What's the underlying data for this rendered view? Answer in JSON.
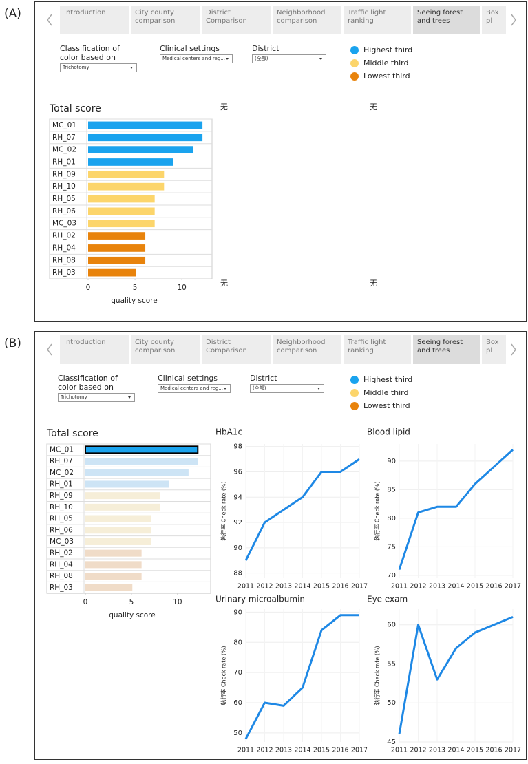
{
  "panels": [
    {
      "label": "(A)",
      "tabs": [
        "Introduction",
        "City county comparison",
        "District Comparison",
        "Neighborhood comparison",
        "Traffic light ranking",
        "Seeing forest and trees",
        "Box pl"
      ],
      "active_tab": 5,
      "filters": [
        {
          "label": "Classification of color based on",
          "value": "Trichotomy"
        },
        {
          "label": "Clinical settings",
          "value": "Medical centers and reg..."
        },
        {
          "label": "District",
          "value": "(全部)"
        }
      ],
      "legend": [
        {
          "name": "Highest third",
          "color": "#1aa3ee"
        },
        {
          "name": "Middle third",
          "color": "#fcd56b"
        },
        {
          "name": "Lowest third",
          "color": "#e8830c"
        }
      ],
      "placeholders": [
        "无",
        "无",
        "无",
        "无"
      ]
    },
    {
      "label": "(B)",
      "tabs": [
        "Introduction",
        "City county comparison",
        "District Comparison",
        "Neighborhood comparison",
        "Traffic light ranking",
        "Seeing forest and trees",
        "Box pl"
      ],
      "active_tab": 5,
      "filters": [
        {
          "label": "Classification of color based on",
          "value": "Trichotomy"
        },
        {
          "label": "Clinical settings",
          "value": "Medical centers and reg..."
        },
        {
          "label": "District",
          "value": "(全部)"
        }
      ],
      "legend": [
        {
          "name": "Highest third",
          "color": "#1aa3ee"
        },
        {
          "name": "Middle third",
          "color": "#fcd56b"
        },
        {
          "name": "Lowest third",
          "color": "#e8830c"
        }
      ]
    }
  ],
  "chart_data": [
    {
      "type": "bar",
      "title": "Total score",
      "categories": [
        "MC_01",
        "RH_07",
        "MC_02",
        "RH_01",
        "RH_09",
        "RH_10",
        "RH_05",
        "RH_06",
        "MC_03",
        "RH_02",
        "RH_04",
        "RH_08",
        "RH_03"
      ],
      "values": [
        12.2,
        12.2,
        11.2,
        9.1,
        8.1,
        8.1,
        7.1,
        7.1,
        7.1,
        6.1,
        6.1,
        6.1,
        5.1
      ],
      "colors": [
        "#1aa3ee",
        "#1aa3ee",
        "#1aa3ee",
        "#1aa3ee",
        "#fcd56b",
        "#fcd56b",
        "#fcd56b",
        "#fcd56b",
        "#fcd56b",
        "#e8830c",
        "#e8830c",
        "#e8830c",
        "#e8830c"
      ],
      "xlabel": "quality score",
      "xlim": [
        0,
        13
      ],
      "xticks": [
        0,
        5,
        10
      ]
    },
    {
      "type": "bar",
      "title": "Total score",
      "categories": [
        "MC_01",
        "RH_07",
        "MC_02",
        "RH_01",
        "RH_09",
        "RH_10",
        "RH_05",
        "RH_06",
        "MC_03",
        "RH_02",
        "RH_04",
        "RH_08",
        "RH_03"
      ],
      "values": [
        12.2,
        12.2,
        11.2,
        9.1,
        8.1,
        8.1,
        7.1,
        7.1,
        7.1,
        6.1,
        6.1,
        6.1,
        5.1
      ],
      "colors": [
        "#1aa3ee",
        "#cde4f5",
        "#cde4f5",
        "#cde4f5",
        "#f6eed8",
        "#f6eed8",
        "#f6eed8",
        "#f6eed8",
        "#f6eed8",
        "#f0dcc8",
        "#f0dcc8",
        "#f0dcc8",
        "#f0dcc8"
      ],
      "selected": 0,
      "xlabel": "quality score",
      "xlim": [
        0,
        13
      ],
      "xticks": [
        0,
        5,
        10
      ]
    },
    {
      "type": "line",
      "title": "HbA1c",
      "ylabel": "執行率 Check rate (%)",
      "color": "#1e88e5",
      "grid": true,
      "x": [
        2011,
        2012,
        2013,
        2014,
        2015,
        2016,
        2017
      ],
      "values": [
        89,
        92,
        93,
        94,
        96,
        96,
        97
      ],
      "xlim": [
        2011,
        2017
      ],
      "xticks": [
        2011,
        2012,
        2013,
        2014,
        2015,
        2016,
        2017
      ],
      "ylim": [
        87.6,
        98.2
      ],
      "yticks": [
        88,
        90,
        92,
        94,
        96,
        98
      ]
    },
    {
      "type": "line",
      "title": "Blood lipid",
      "ylabel": "執行率 Check rate (%)",
      "color": "#1e88e5",
      "grid": true,
      "x": [
        2011,
        2012,
        2013,
        2014,
        2015,
        2016,
        2017
      ],
      "values": [
        71,
        81,
        82,
        82,
        86,
        89,
        92
      ],
      "xlim": [
        2011,
        2017
      ],
      "xticks": [
        2011,
        2012,
        2013,
        2014,
        2015,
        2016,
        2017
      ],
      "ylim": [
        69.5,
        93
      ],
      "yticks": [
        70,
        75,
        80,
        85,
        90
      ]
    },
    {
      "type": "line",
      "title": "Urinary microalbumin",
      "ylabel": "執行率 Check rate (%)",
      "color": "#1e88e5",
      "grid": true,
      "x": [
        2011,
        2012,
        2013,
        2014,
        2015,
        2016,
        2017
      ],
      "values": [
        48,
        60,
        59,
        65,
        84,
        89,
        89
      ],
      "xlim": [
        2011,
        2017
      ],
      "xticks": [
        2011,
        2012,
        2013,
        2014,
        2015,
        2016,
        2017
      ],
      "ylim": [
        47,
        91
      ],
      "yticks": [
        50,
        60,
        70,
        80,
        90
      ]
    },
    {
      "type": "line",
      "title": "Eye exam",
      "ylabel": "執行率 Check rate (%)",
      "color": "#1e88e5",
      "grid": true,
      "x": [
        2011,
        2012,
        2013,
        2014,
        2015,
        2016,
        2017
      ],
      "values": [
        46,
        60,
        53,
        57,
        59,
        60,
        61
      ],
      "xlim": [
        2011,
        2017
      ],
      "xticks": [
        2011,
        2012,
        2013,
        2014,
        2015,
        2016,
        2017
      ],
      "ylim": [
        45,
        62
      ],
      "yticks": [
        45,
        50,
        55,
        60
      ]
    }
  ]
}
